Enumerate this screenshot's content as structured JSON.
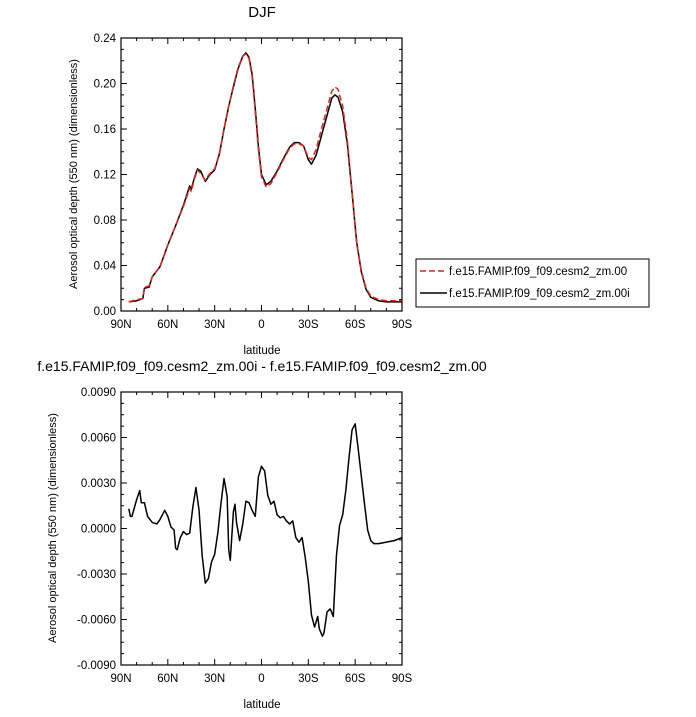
{
  "chart_data": [
    {
      "type": "line",
      "title": "DJF",
      "xlabel": "latitude",
      "ylabel": "Aerosol optical depth (550 nm) (dimensionless)",
      "xlim": [
        90,
        -90
      ],
      "ylim": [
        0.0,
        0.24
      ],
      "x_ticks": [
        90,
        60,
        30,
        0,
        -30,
        -60,
        -90
      ],
      "x_tick_labels": [
        "90N",
        "60N",
        "30N",
        "0",
        "30S",
        "60S",
        "90S"
      ],
      "y_ticks": [
        0.0,
        0.04,
        0.08,
        0.12,
        0.16,
        0.2,
        0.24
      ],
      "y_tick_labels": [
        "0.00",
        "0.04",
        "0.08",
        "0.12",
        "0.16",
        "0.20",
        "0.24"
      ],
      "legend_position": "right",
      "series": [
        {
          "name": "f.e15.FAMIP.f09_f09.cesm2_zm.00",
          "color": "#e8211c",
          "dash": "dashed",
          "points": [
            [
              85,
              0.008
            ],
            [
              80,
              0.01
            ],
            [
              76,
              0.011
            ],
            [
              75,
              0.021
            ],
            [
              72,
              0.022
            ],
            [
              70,
              0.03
            ],
            [
              65,
              0.039
            ],
            [
              60,
              0.058
            ],
            [
              55,
              0.075
            ],
            [
              50,
              0.092
            ],
            [
              46,
              0.108
            ],
            [
              45,
              0.105
            ],
            [
              43,
              0.116
            ],
            [
              41,
              0.124
            ],
            [
              39,
              0.121
            ],
            [
              36,
              0.115
            ],
            [
              33,
              0.121
            ],
            [
              30,
              0.125
            ],
            [
              27,
              0.138
            ],
            [
              24,
              0.16
            ],
            [
              21,
              0.18
            ],
            [
              18,
              0.198
            ],
            [
              15,
              0.214
            ],
            [
              12,
              0.224
            ],
            [
              10,
              0.226
            ],
            [
              8,
              0.222
            ],
            [
              6,
              0.206
            ],
            [
              4,
              0.175
            ],
            [
              2,
              0.142
            ],
            [
              0,
              0.118
            ],
            [
              -3,
              0.109
            ],
            [
              -6,
              0.112
            ],
            [
              -10,
              0.122
            ],
            [
              -14,
              0.133
            ],
            [
              -18,
              0.143
            ],
            [
              -21,
              0.147
            ],
            [
              -24,
              0.147
            ],
            [
              -27,
              0.145
            ],
            [
              -30,
              0.135
            ],
            [
              -32,
              0.133
            ],
            [
              -35,
              0.142
            ],
            [
              -38,
              0.158
            ],
            [
              -42,
              0.178
            ],
            [
              -45,
              0.193
            ],
            [
              -47,
              0.197
            ],
            [
              -49,
              0.195
            ],
            [
              -52,
              0.18
            ],
            [
              -55,
              0.15
            ],
            [
              -58,
              0.105
            ],
            [
              -61,
              0.06
            ],
            [
              -64,
              0.035
            ],
            [
              -67,
              0.02
            ],
            [
              -70,
              0.013
            ],
            [
              -75,
              0.01
            ],
            [
              -80,
              0.009
            ],
            [
              -85,
              0.009
            ],
            [
              -90,
              0.009
            ]
          ]
        },
        {
          "name": "f.e15.FAMIP.f09_f09.cesm2_zm.00i",
          "color": "#000000",
          "dash": "solid",
          "points": [
            [
              85,
              0.008
            ],
            [
              80,
              0.009
            ],
            [
              76,
              0.011
            ],
            [
              75,
              0.02
            ],
            [
              72,
              0.021
            ],
            [
              70,
              0.03
            ],
            [
              65,
              0.039
            ],
            [
              60,
              0.058
            ],
            [
              55,
              0.075
            ],
            [
              50,
              0.093
            ],
            [
              46,
              0.11
            ],
            [
              45,
              0.107
            ],
            [
              43,
              0.117
            ],
            [
              41,
              0.125
            ],
            [
              39,
              0.123
            ],
            [
              36,
              0.114
            ],
            [
              33,
              0.12
            ],
            [
              30,
              0.124
            ],
            [
              27,
              0.138
            ],
            [
              24,
              0.16
            ],
            [
              21,
              0.18
            ],
            [
              18,
              0.197
            ],
            [
              15,
              0.213
            ],
            [
              12,
              0.224
            ],
            [
              10,
              0.227
            ],
            [
              8,
              0.223
            ],
            [
              6,
              0.208
            ],
            [
              4,
              0.178
            ],
            [
              2,
              0.145
            ],
            [
              0,
              0.12
            ],
            [
              -3,
              0.111
            ],
            [
              -6,
              0.114
            ],
            [
              -10,
              0.123
            ],
            [
              -14,
              0.134
            ],
            [
              -18,
              0.144
            ],
            [
              -21,
              0.148
            ],
            [
              -24,
              0.148
            ],
            [
              -27,
              0.145
            ],
            [
              -30,
              0.133
            ],
            [
              -32,
              0.129
            ],
            [
              -35,
              0.137
            ],
            [
              -38,
              0.152
            ],
            [
              -42,
              0.172
            ],
            [
              -45,
              0.187
            ],
            [
              -47,
              0.19
            ],
            [
              -49,
              0.188
            ],
            [
              -52,
              0.175
            ],
            [
              -55,
              0.147
            ],
            [
              -58,
              0.104
            ],
            [
              -61,
              0.06
            ],
            [
              -64,
              0.034
            ],
            [
              -67,
              0.019
            ],
            [
              -70,
              0.012
            ],
            [
              -75,
              0.009
            ],
            [
              -80,
              0.008
            ],
            [
              -85,
              0.008
            ],
            [
              -90,
              0.008
            ]
          ]
        }
      ]
    },
    {
      "type": "line",
      "title": "f.e15.FAMIP.f09_f09.cesm2_zm.00i - f.e15.FAMIP.f09_f09.cesm2_zm.00",
      "xlabel": "latitude",
      "ylabel": "Aerosol optical depth (550 nm) (dimensionless)",
      "xlim": [
        90,
        -90
      ],
      "ylim": [
        -0.009,
        0.009
      ],
      "x_ticks": [
        90,
        60,
        30,
        0,
        -30,
        -60,
        -90
      ],
      "x_tick_labels": [
        "90N",
        "60N",
        "30N",
        "0",
        "30S",
        "60S",
        "90S"
      ],
      "y_ticks": [
        -0.009,
        -0.006,
        -0.003,
        0.0,
        0.003,
        0.006,
        0.009
      ],
      "y_tick_labels": [
        "-0.0090",
        "-0.0060",
        "-0.0030",
        "0.0000",
        "0.0030",
        "0.0060",
        "0.0090"
      ],
      "series": [
        {
          "color": "#000000",
          "dash": "solid",
          "points": [
            [
              85,
              0.0013
            ],
            [
              84,
              0.0008
            ],
            [
              83,
              0.0008
            ],
            [
              80,
              0.0019
            ],
            [
              78,
              0.0025
            ],
            [
              77,
              0.0017
            ],
            [
              75,
              0.0017
            ],
            [
              73,
              0.0008
            ],
            [
              70,
              0.0004
            ],
            [
              67,
              0.0003
            ],
            [
              65,
              0.0006
            ],
            [
              62,
              0.0012
            ],
            [
              60,
              0.0008
            ],
            [
              58,
              0.0001
            ],
            [
              56,
              -0.0001
            ],
            [
              55,
              -0.0013
            ],
            [
              54,
              -0.0014
            ],
            [
              52,
              -0.0006
            ],
            [
              50,
              -0.0002
            ],
            [
              48,
              -0.0004
            ],
            [
              46,
              -0.0003
            ],
            [
              44,
              0.0014
            ],
            [
              42,
              0.0027
            ],
            [
              40,
              0.0012
            ],
            [
              38,
              -0.0018
            ],
            [
              36,
              -0.0036
            ],
            [
              34,
              -0.0033
            ],
            [
              32,
              -0.0022
            ],
            [
              30,
              -0.0017
            ],
            [
              28,
              -0.0003
            ],
            [
              26,
              0.0016
            ],
            [
              24,
              0.0033
            ],
            [
              22,
              0.0021
            ],
            [
              21,
              -0.0014
            ],
            [
              20,
              -0.0021
            ],
            [
              18,
              0.0011
            ],
            [
              17,
              0.0016
            ],
            [
              16,
              0.0004
            ],
            [
              14,
              -0.0008
            ],
            [
              12,
              0.0003
            ],
            [
              10,
              0.0018
            ],
            [
              8,
              0.0017
            ],
            [
              6,
              0.0012
            ],
            [
              4,
              0.0008
            ],
            [
              2,
              0.0034
            ],
            [
              0,
              0.0041
            ],
            [
              -2,
              0.0038
            ],
            [
              -4,
              0.0022
            ],
            [
              -6,
              0.0016
            ],
            [
              -8,
              0.0018
            ],
            [
              -10,
              0.0009
            ],
            [
              -12,
              0.0007
            ],
            [
              -14,
              0.0008
            ],
            [
              -16,
              0.0005
            ],
            [
              -18,
              0.0003
            ],
            [
              -20,
              0.0005
            ],
            [
              -22,
              -0.0006
            ],
            [
              -24,
              -0.0009
            ],
            [
              -26,
              -0.0006
            ],
            [
              -28,
              -0.0019
            ],
            [
              -30,
              -0.0035
            ],
            [
              -32,
              -0.0057
            ],
            [
              -34,
              -0.0065
            ],
            [
              -36,
              -0.0058
            ],
            [
              -37,
              -0.0066
            ],
            [
              -39,
              -0.0071
            ],
            [
              -40,
              -0.0069
            ],
            [
              -42,
              -0.0055
            ],
            [
              -44,
              -0.0053
            ],
            [
              -46,
              -0.0058
            ],
            [
              -48,
              -0.0018
            ],
            [
              -50,
              0.0002
            ],
            [
              -52,
              0.0009
            ],
            [
              -54,
              0.0025
            ],
            [
              -56,
              0.0046
            ],
            [
              -58,
              0.0065
            ],
            [
              -60,
              0.0069
            ],
            [
              -62,
              0.0052
            ],
            [
              -64,
              0.0034
            ],
            [
              -66,
              0.0016
            ],
            [
              -68,
              -0.0001
            ],
            [
              -70,
              -0.0008
            ],
            [
              -72,
              -0.001
            ],
            [
              -75,
              -0.001
            ],
            [
              -80,
              -0.0009
            ],
            [
              -85,
              -0.0008
            ],
            [
              -90,
              -0.0006
            ]
          ]
        }
      ]
    }
  ]
}
